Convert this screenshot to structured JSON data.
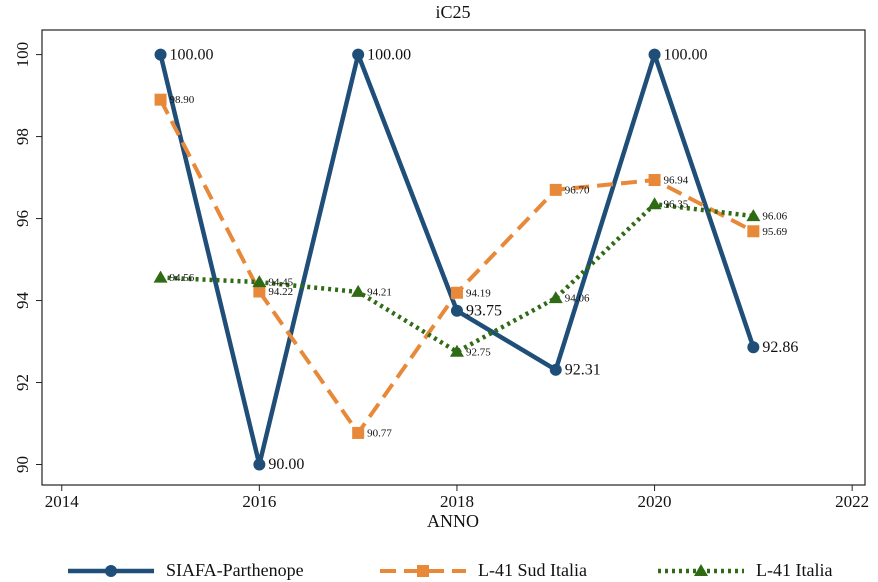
{
  "chart_data": {
    "type": "line",
    "title": "iC25",
    "x_label": "ANNO",
    "x": [
      2015,
      2016,
      2017,
      2018,
      2019,
      2020,
      2021
    ],
    "series": [
      {
        "name": "SIAFA-Parthenope",
        "color": "#1f4e79",
        "dash": "solid",
        "marker": "circle",
        "values": [
          100,
          90,
          100,
          93.75,
          92.31,
          100,
          92.86
        ],
        "value_labels": [
          "100.00",
          "90.00",
          "100.00",
          "93.75",
          "92.31",
          "100.00",
          "92.86"
        ]
      },
      {
        "name": "L-41 Sud Italia",
        "color": "#e8893a",
        "dash": "dashed",
        "marker": "square",
        "values": [
          98.9,
          94.22,
          90.77,
          94.19,
          96.7,
          96.94,
          95.69
        ],
        "value_labels": [
          "98.90",
          "94.22",
          "90.77",
          "94.19",
          "96.70",
          "96.94",
          "95.69"
        ]
      },
      {
        "name": "L-41 Italia",
        "color": "#2e6b14",
        "dash": "dotted",
        "marker": "triangle",
        "values": [
          94.56,
          94.45,
          94.21,
          92.75,
          94.06,
          96.35,
          96.06
        ],
        "value_labels": [
          "94.56",
          "94.45",
          "94.21",
          "92.75",
          "94.06",
          "96.35",
          "96.06"
        ]
      }
    ],
    "xlim": [
      2013.8,
      2022.13
    ],
    "xticks": [
      2014,
      2016,
      2018,
      2020,
      2022
    ],
    "ylim": [
      89.5,
      100.6
    ],
    "yticks": [
      90,
      92,
      94,
      96,
      98,
      100
    ],
    "grid": false,
    "legend": "bottom"
  }
}
